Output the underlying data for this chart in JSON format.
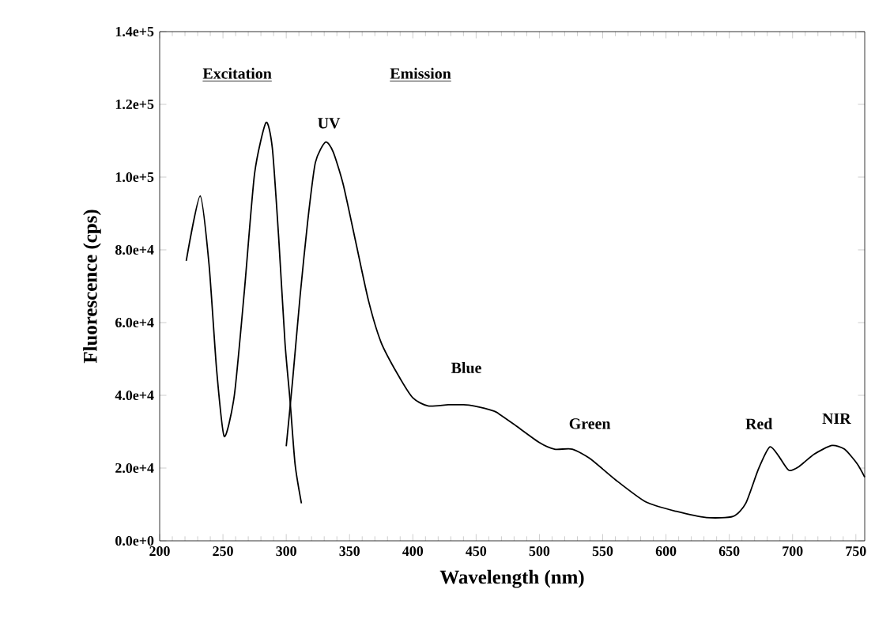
{
  "chart_data": {
    "type": "line",
    "xlabel": "Wavelength (nm)",
    "ylabel": "Fluorescence (cps)",
    "xlim": [
      200,
      757
    ],
    "ylim": [
      0,
      140000
    ],
    "xticks": [
      200,
      250,
      300,
      350,
      400,
      450,
      500,
      550,
      600,
      650,
      700,
      750
    ],
    "yticks": [
      {
        "value": 0,
        "label": "0.0e+0"
      },
      {
        "value": 20000,
        "label": "2.0e+4"
      },
      {
        "value": 40000,
        "label": "4.0e+4"
      },
      {
        "value": 60000,
        "label": "6.0e+4"
      },
      {
        "value": 80000,
        "label": "8.0e+4"
      },
      {
        "value": 100000,
        "label": "1.0e+5"
      },
      {
        "value": 120000,
        "label": "1.2e+5"
      },
      {
        "value": 140000,
        "label": "1.4e+5"
      }
    ],
    "line_style": "solid",
    "marker": "none",
    "series": [
      {
        "color": "#000000",
        "x": [
          221,
          232,
          239,
          245,
          251,
          259,
          267,
          275,
          284,
          289,
          294,
          299,
          303,
          307,
          312
        ],
        "values": [
          77000,
          94800,
          76000,
          47000,
          28700,
          40000,
          69000,
          101000,
          115000,
          108000,
          83500,
          54500,
          38600,
          21000,
          10300
        ]
      },
      {
        "color": "#000000",
        "x": [
          300,
          305,
          311,
          317,
          323,
          331,
          337,
          345,
          355,
          365,
          375,
          388,
          400,
          412,
          428,
          440,
          448,
          464,
          468,
          480,
          500,
          512,
          526,
          540,
          560,
          584,
          608,
          632,
          653,
          663,
          673,
          682,
          689,
          697,
          705,
          717,
          731,
          741,
          751,
          757
        ],
        "values": [
          26000,
          44000,
          67500,
          88000,
          104000,
          109600,
          107000,
          98000,
          82000,
          66000,
          54500,
          45800,
          39300,
          37100,
          37400,
          37400,
          37100,
          35700,
          34900,
          32000,
          27000,
          25200,
          25200,
          22600,
          16800,
          10700,
          8100,
          6400,
          6700,
          10300,
          19700,
          25800,
          23300,
          19400,
          20400,
          23800,
          26200,
          25200,
          21200,
          17500
        ]
      }
    ],
    "annotations": [
      "Excitation",
      "Emission",
      "UV",
      "Blue",
      "Green",
      "Red",
      "NIR"
    ]
  }
}
